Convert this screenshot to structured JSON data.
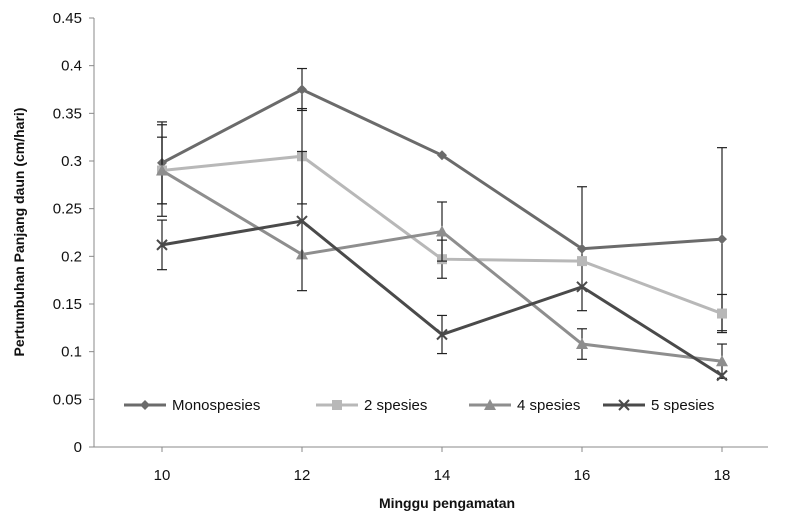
{
  "chart_data": {
    "type": "line",
    "title": "",
    "xlabel": "Minggu pengamatan",
    "ylabel": "Pertumbuhan Panjang daun (cm/hari)",
    "x": [
      10,
      12,
      14,
      16,
      18
    ],
    "x_tick_labels": [
      "10",
      "12",
      "14",
      "16",
      "18"
    ],
    "ylim": [
      0,
      0.45
    ],
    "y_ticks": [
      0,
      0.05,
      0.1,
      0.15,
      0.2,
      0.25,
      0.3,
      0.35,
      0.4,
      0.45
    ],
    "y_tick_labels": [
      "0",
      "0.05",
      "0.1",
      "0.15",
      "0.2",
      "0.25",
      "0.3",
      "0.35",
      "0.4",
      "0.45"
    ],
    "grid": false,
    "legend_position": "bottom-inside",
    "series": [
      {
        "name": "Monospesies",
        "marker": "diamond",
        "color": "#6b6b6b",
        "values": [
          0.298,
          0.375,
          0.306,
          0.208,
          0.218
        ],
        "errors": [
          0.043,
          0.022,
          0.0,
          0.065,
          0.096
        ]
      },
      {
        "name": "2 spesies",
        "marker": "square",
        "color": "#b8b8b8",
        "values": [
          0.29,
          0.305,
          0.197,
          0.195,
          0.14
        ],
        "errors": [
          0.048,
          0.05,
          0.02,
          0.0,
          0.02
        ]
      },
      {
        "name": "4 spesies",
        "marker": "triangle",
        "color": "#8e8e8e",
        "values": [
          0.29,
          0.202,
          0.226,
          0.108,
          0.09
        ],
        "errors": [
          0.035,
          0.0,
          0.031,
          0.016,
          0.018
        ]
      },
      {
        "name": "5 spesies",
        "marker": "x",
        "color": "#4a4a4a",
        "values": [
          0.212,
          0.237,
          0.118,
          0.168,
          0.075
        ],
        "errors": [
          0.026,
          0.073,
          0.02,
          0.0,
          0.0
        ]
      }
    ]
  }
}
